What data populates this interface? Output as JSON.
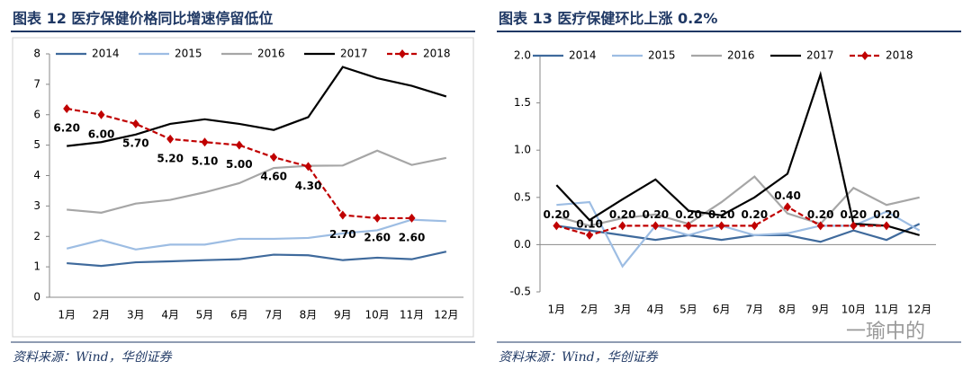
{
  "chart_data": [
    {
      "type": "line",
      "title": "图表 12   医疗保健价格同比增速停留低位",
      "source": "资料来源：Wind，华创证券",
      "categories": [
        "1月",
        "2月",
        "3月",
        "4月",
        "5月",
        "6月",
        "7月",
        "8月",
        "9月",
        "10月",
        "11月",
        "12月"
      ],
      "ylim": [
        0,
        8
      ],
      "yticks": [
        0,
        1,
        2,
        3,
        4,
        5,
        6,
        7,
        8
      ],
      "series": [
        {
          "name": "2014",
          "color": "#3f6a9c",
          "values": [
            1.12,
            1.03,
            1.15,
            1.18,
            1.22,
            1.25,
            1.4,
            1.38,
            1.22,
            1.3,
            1.25,
            1.5
          ]
        },
        {
          "name": "2015",
          "color": "#9dbde3",
          "values": [
            1.6,
            1.88,
            1.57,
            1.73,
            1.73,
            1.92,
            1.92,
            1.95,
            2.1,
            2.2,
            2.55,
            2.5
          ]
        },
        {
          "name": "2016",
          "color": "#a6a6a6",
          "values": [
            2.88,
            2.78,
            3.08,
            3.2,
            3.45,
            3.75,
            4.25,
            4.32,
            4.33,
            4.82,
            4.35,
            4.58
          ]
        },
        {
          "name": "2017",
          "color": "#000000",
          "values": [
            4.97,
            5.1,
            5.35,
            5.7,
            5.85,
            5.7,
            5.5,
            5.92,
            7.57,
            7.2,
            6.95,
            6.6
          ]
        },
        {
          "name": "2018",
          "color": "#c00000",
          "style": "dashed",
          "marker": "diamond",
          "values": [
            6.2,
            6.0,
            5.7,
            5.2,
            5.1,
            5.0,
            4.6,
            4.3,
            2.7,
            2.6,
            2.6,
            null
          ],
          "value_labels": [
            "6.20",
            "6.00",
            "5.70",
            "5.20",
            "5.10",
            "5.00",
            "4.60",
            "4.30",
            "2.70",
            "2.60",
            "2.60",
            null
          ]
        }
      ]
    },
    {
      "type": "line",
      "title": "图表 13   医疗保健环比上涨 0.2%",
      "source": "资料来源：Wind，华创证券",
      "watermark": "一瑜中的",
      "categories": [
        "1月",
        "2月",
        "3月",
        "4月",
        "5月",
        "6月",
        "7月",
        "8月",
        "9月",
        "10月",
        "11月",
        "12月"
      ],
      "ylim": [
        -0.5,
        2.0
      ],
      "yticks": [
        -0.5,
        {
          "value": 0,
          "label": "0.0"
        },
        0.5,
        {
          "value": 1,
          "label": "1.0"
        },
        1.5,
        {
          "value": 2,
          "label": "2.0"
        }
      ],
      "series": [
        {
          "name": "2014",
          "color": "#3f6a9c",
          "values": [
            0.2,
            0.15,
            0.1,
            0.05,
            0.1,
            0.05,
            0.1,
            0.1,
            0.03,
            0.15,
            0.05,
            0.22
          ]
        },
        {
          "name": "2015",
          "color": "#9dbde3",
          "values": [
            0.42,
            0.45,
            -0.23,
            0.2,
            0.1,
            0.2,
            0.1,
            0.12,
            0.2,
            0.2,
            0.35,
            0.15
          ]
        },
        {
          "name": "2016",
          "color": "#a6a6a6",
          "values": [
            0.3,
            0.2,
            0.28,
            0.32,
            0.22,
            0.45,
            0.72,
            0.33,
            0.22,
            0.6,
            0.42,
            0.5
          ]
        },
        {
          "name": "2017",
          "color": "#000000",
          "values": [
            0.63,
            0.26,
            0.48,
            0.69,
            0.36,
            0.31,
            0.5,
            0.75,
            1.8,
            0.22,
            0.2,
            0.1
          ]
        },
        {
          "name": "2018",
          "color": "#c00000",
          "style": "dashed",
          "marker": "diamond",
          "values": [
            0.2,
            0.1,
            0.2,
            0.2,
            0.2,
            0.2,
            0.2,
            0.4,
            0.2,
            0.2,
            0.2,
            null
          ],
          "value_labels": [
            "0.20",
            "0.10",
            "0.20",
            "0.20",
            "0.20",
            "0.20",
            "0.20",
            "0.40",
            "0.20",
            "0.20",
            "0.20",
            null
          ]
        }
      ]
    }
  ]
}
